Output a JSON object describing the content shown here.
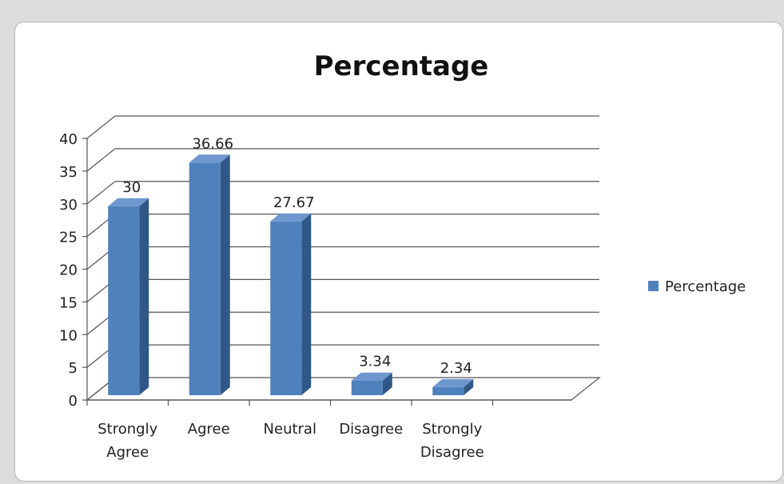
{
  "chart_data": {
    "type": "bar",
    "title": "Percentage",
    "categories": [
      [
        "Strongly",
        "Agree"
      ],
      [
        "Agree"
      ],
      [
        "Neutral"
      ],
      [
        "Disagree"
      ],
      [
        "Strongly",
        "Disagree"
      ]
    ],
    "series": [
      {
        "name": "Percentage",
        "values": [
          30,
          36.66,
          27.67,
          3.34,
          2.34
        ],
        "labels": [
          "30",
          "36.66",
          "27.67",
          "3.34",
          "2.34"
        ],
        "color": "#4f81bd"
      }
    ],
    "yticks": [
      "0",
      "5",
      "10",
      "15",
      "20",
      "25",
      "30",
      "35",
      "40"
    ],
    "ylim": [
      0,
      40
    ],
    "grid": true,
    "three_d": true,
    "legend": "right"
  }
}
